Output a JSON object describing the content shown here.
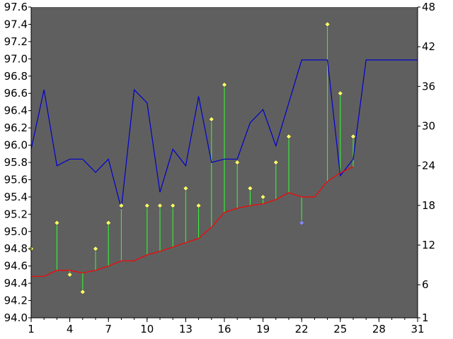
{
  "chart_data": {
    "type": "line",
    "x_ticks": [
      1,
      4,
      7,
      10,
      13,
      16,
      19,
      22,
      25,
      28,
      31
    ],
    "y_left_ticks": [
      "94.0",
      "94.2",
      "94.4",
      "94.6",
      "94.8",
      "95.0",
      "95.2",
      "95.4",
      "95.6",
      "95.8",
      "96.0",
      "96.2",
      "96.4",
      "96.6",
      "96.8",
      "97.0",
      "97.2",
      "97.4",
      "97.6"
    ],
    "y_right_ticks": [
      "1",
      "6",
      "12",
      "18",
      "24",
      "30",
      "36",
      "42",
      "48"
    ],
    "xlim": [
      1,
      31
    ],
    "ylim_left": [
      94.0,
      97.6
    ],
    "ylim_right": [
      1,
      48
    ],
    "grid": false,
    "colors": {
      "plot_bg": "#5f5f5f",
      "blue_line": "#0000cc",
      "red_line": "#ff0000",
      "stems": "#33ff33",
      "markers": "#ffff66",
      "marker_low": "#8888ff"
    },
    "series": [
      {
        "role": "right-axis line",
        "x": [
          1,
          2,
          3,
          4,
          5,
          6,
          7,
          8,
          9,
          10,
          11,
          12,
          13,
          14,
          15,
          16,
          17,
          18,
          19,
          20,
          21,
          22,
          23,
          24,
          25,
          26,
          27,
          28,
          29,
          30,
          31
        ],
        "y": [
          26.5,
          35.5,
          24,
          25,
          25,
          23,
          25,
          17.5,
          35.5,
          33.5,
          20,
          26.5,
          24,
          34.5,
          24.5,
          25,
          25,
          30.5,
          32.5,
          27,
          33.5,
          40,
          40,
          40,
          22.5,
          25,
          40,
          40,
          40,
          40,
          40
        ]
      },
      {
        "role": "left-axis trend line",
        "x": [
          1,
          2,
          3,
          4,
          5,
          6,
          7,
          8,
          9,
          10,
          11,
          12,
          13,
          14,
          15,
          16,
          17,
          18,
          19,
          20,
          21,
          22,
          23,
          24,
          25,
          26
        ],
        "y": [
          94.48,
          94.48,
          94.55,
          94.55,
          94.52,
          94.55,
          94.6,
          94.66,
          94.66,
          94.73,
          94.77,
          94.82,
          94.87,
          94.92,
          95.05,
          95.22,
          95.27,
          95.3,
          95.32,
          95.37,
          95.45,
          95.4,
          95.4,
          95.58,
          95.68,
          95.75
        ]
      },
      {
        "role": "markers",
        "x": [
          1,
          3,
          4,
          5,
          6,
          7,
          8,
          10,
          11,
          12,
          13,
          14,
          15,
          16,
          17,
          18,
          19,
          20,
          21,
          22,
          24,
          25,
          26
        ],
        "y": [
          94.8,
          95.1,
          94.5,
          94.3,
          94.8,
          95.1,
          95.3,
          95.3,
          95.3,
          95.3,
          95.5,
          95.3,
          96.3,
          96.7,
          95.8,
          95.5,
          95.4,
          95.8,
          96.1,
          95.1,
          97.4,
          96.6,
          96.1
        ],
        "low": [
          false,
          false,
          false,
          false,
          false,
          false,
          false,
          false,
          false,
          false,
          false,
          false,
          false,
          false,
          false,
          false,
          false,
          false,
          false,
          true,
          false,
          false,
          false
        ]
      }
    ]
  }
}
